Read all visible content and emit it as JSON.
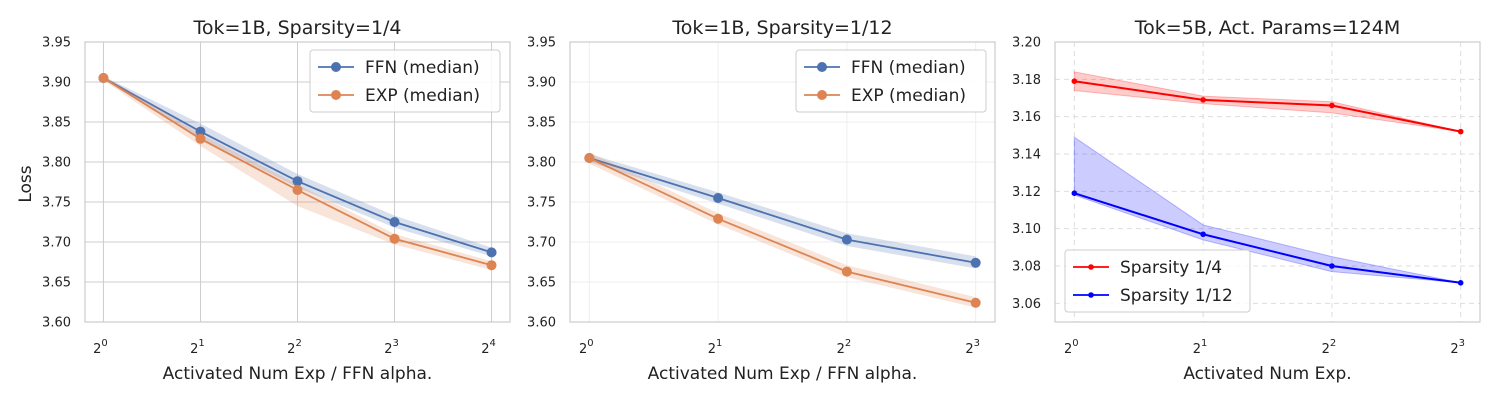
{
  "figure": {
    "ylabel": "Loss"
  },
  "chart_data": [
    {
      "type": "line",
      "title": "Tok=1B, Sparsity=1/4",
      "xlabel": "Activated Num Exp / FFN alpha.",
      "ylabel": "Loss",
      "x_exponents": [
        0,
        1,
        2,
        3,
        4
      ],
      "xticks": [
        {
          "base": "2",
          "exp": "0"
        },
        {
          "base": "2",
          "exp": "1"
        },
        {
          "base": "2",
          "exp": "2"
        },
        {
          "base": "2",
          "exp": "3"
        },
        {
          "base": "2",
          "exp": "4"
        }
      ],
      "ylim": [
        3.6,
        3.95
      ],
      "yticks": [
        "3.60",
        "3.65",
        "3.70",
        "3.75",
        "3.80",
        "3.85",
        "3.90",
        "3.95"
      ],
      "grid": "solid",
      "legend_position": "upper-right",
      "series": [
        {
          "name": "FFN (median)",
          "color": "#4c72b0",
          "marker": "circle",
          "values": [
            3.905,
            3.838,
            3.776,
            3.725,
            3.687
          ],
          "band_low": [
            3.903,
            3.83,
            3.768,
            3.718,
            3.682
          ],
          "band_high": [
            3.907,
            3.848,
            3.785,
            3.733,
            3.693
          ]
        },
        {
          "name": "EXP (median)",
          "color": "#dd8452",
          "marker": "circle",
          "values": [
            3.905,
            3.829,
            3.765,
            3.704,
            3.671
          ],
          "band_low": [
            3.902,
            3.82,
            3.745,
            3.697,
            3.665
          ],
          "band_high": [
            3.908,
            3.835,
            3.772,
            3.71,
            3.676
          ]
        }
      ]
    },
    {
      "type": "line",
      "title": "Tok=1B, Sparsity=1/12",
      "xlabel": "Activated Num Exp / FFN alpha.",
      "ylabel": "",
      "x_exponents": [
        0,
        1,
        2,
        3
      ],
      "xticks": [
        {
          "base": "2",
          "exp": "0"
        },
        {
          "base": "2",
          "exp": "1"
        },
        {
          "base": "2",
          "exp": "2"
        },
        {
          "base": "2",
          "exp": "3"
        }
      ],
      "ylim": [
        3.6,
        3.95
      ],
      "yticks": [
        "3.60",
        "3.65",
        "3.70",
        "3.75",
        "3.80",
        "3.85",
        "3.90",
        "3.95"
      ],
      "grid": "faint",
      "legend_position": "upper-right",
      "series": [
        {
          "name": "FFN (median)",
          "color": "#4c72b0",
          "marker": "circle",
          "values": [
            3.805,
            3.755,
            3.703,
            3.674
          ],
          "band_low": [
            3.8,
            3.748,
            3.695,
            3.667
          ],
          "band_high": [
            3.81,
            3.762,
            3.711,
            3.682
          ]
        },
        {
          "name": "EXP (median)",
          "color": "#dd8452",
          "marker": "circle",
          "values": [
            3.805,
            3.729,
            3.663,
            3.624
          ],
          "band_low": [
            3.798,
            3.722,
            3.656,
            3.618
          ],
          "band_high": [
            3.812,
            3.736,
            3.671,
            3.631
          ]
        }
      ]
    },
    {
      "type": "line",
      "title": "Tok=5B, Act. Params=124M",
      "xlabel": "Activated Num Exp.",
      "ylabel": "",
      "x_exponents": [
        0,
        1,
        2,
        3
      ],
      "xticks": [
        {
          "base": "2",
          "exp": "0"
        },
        {
          "base": "2",
          "exp": "1"
        },
        {
          "base": "2",
          "exp": "2"
        },
        {
          "base": "2",
          "exp": "3"
        }
      ],
      "ylim": [
        3.05,
        3.2
      ],
      "yticks": [
        "3.06",
        "3.08",
        "3.10",
        "3.12",
        "3.14",
        "3.16",
        "3.18",
        "3.20"
      ],
      "grid": "dashed",
      "legend_position": "lower-left",
      "series": [
        {
          "name": "Sparsity 1/4",
          "color": "#ff0000",
          "marker": "dot",
          "values": [
            3.179,
            3.169,
            3.166,
            3.152
          ],
          "band_low": [
            3.174,
            3.167,
            3.162,
            3.152
          ],
          "band_high": [
            3.184,
            3.171,
            3.168,
            3.152
          ]
        },
        {
          "name": "Sparsity 1/12",
          "color": "#0000ff",
          "marker": "dot",
          "values": [
            3.119,
            3.097,
            3.08,
            3.071
          ],
          "band_low": [
            3.118,
            3.094,
            3.077,
            3.071
          ],
          "band_high": [
            3.149,
            3.102,
            3.085,
            3.071
          ]
        }
      ]
    }
  ]
}
